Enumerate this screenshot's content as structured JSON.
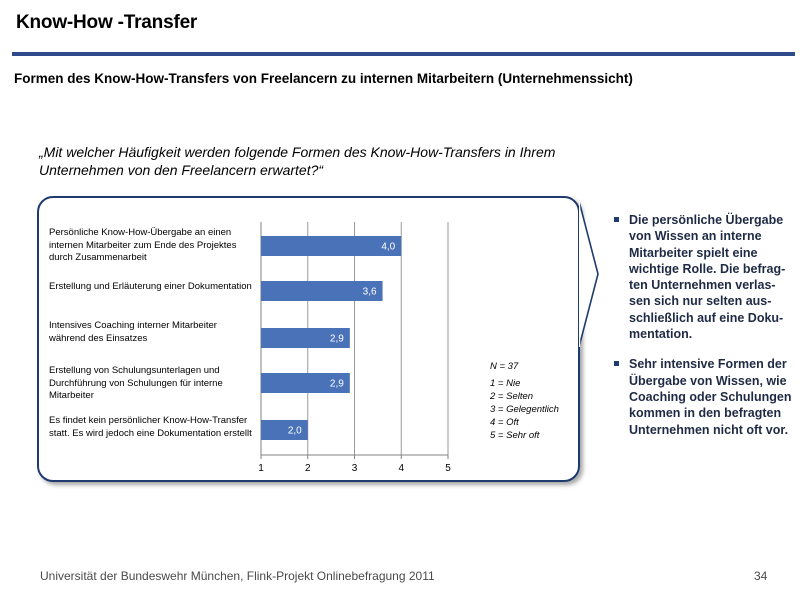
{
  "page": {
    "title": "Know-How -Transfer",
    "subtitle": "Formen des Know-How-Transfers von Freelancern zu internen Mitarbeitern (Unternehmenssicht)",
    "question": "„Mit welcher Häufigkeit werden folgende Formen des Know-How-Transfers in Ihrem Unternehmen von den Freelancern erwartet?“",
    "footer": "Universität der Bundeswehr München, Flink-Projekt Onlinebefragung  2011",
    "page_number": "34"
  },
  "legend": {
    "n": "N = 37",
    "items": [
      "1 = Nie",
      "2 = Selten",
      "3 = Gelegentlich",
      "4 = Oft",
      "5 = Sehr oft"
    ]
  },
  "bullets": [
    "Die persönliche Übergabe von Wissen an interne Mitarbeiter spielt eine wichtige Rolle. Die befrag-ten Unternehmen verlas-sen sich nur selten aus-schließlich auf eine Doku-mentation.",
    "Sehr intensive Formen der Übergabe von Wissen, wie Coaching oder Schulungen kommen in den befragten Unternehmen nicht oft vor."
  ],
  "colors": {
    "bar": "#4a72b8",
    "rule": "#2e4a8a",
    "frame": "#1f3a6e"
  },
  "chart_data": {
    "type": "bar",
    "orientation": "horizontal",
    "categories": [
      "Persönliche Know-How-Übergabe an einen internen Mitarbeiter zum Ende des Projektes durch Zusammenarbeit",
      "Erstellung und Erläuterung einer Dokumentation",
      "Intensives Coaching interner Mitarbeiter während des Einsatzes",
      "Erstellung von Schulungsunterlagen und Durchführung von Schulungen für interne Mitarbeiter",
      "Es findet kein persönlicher Know-How-Transfer statt. Es wird jedoch eine Dokumentation erstellt"
    ],
    "values": [
      4.0,
      3.6,
      2.9,
      2.9,
      2.0
    ],
    "value_labels": [
      "4,0",
      "3,6",
      "2,9",
      "2,9",
      "2,0"
    ],
    "xlim": [
      1,
      5
    ],
    "xticks": [
      "1",
      "2",
      "3",
      "4",
      "5"
    ],
    "grid": true
  }
}
